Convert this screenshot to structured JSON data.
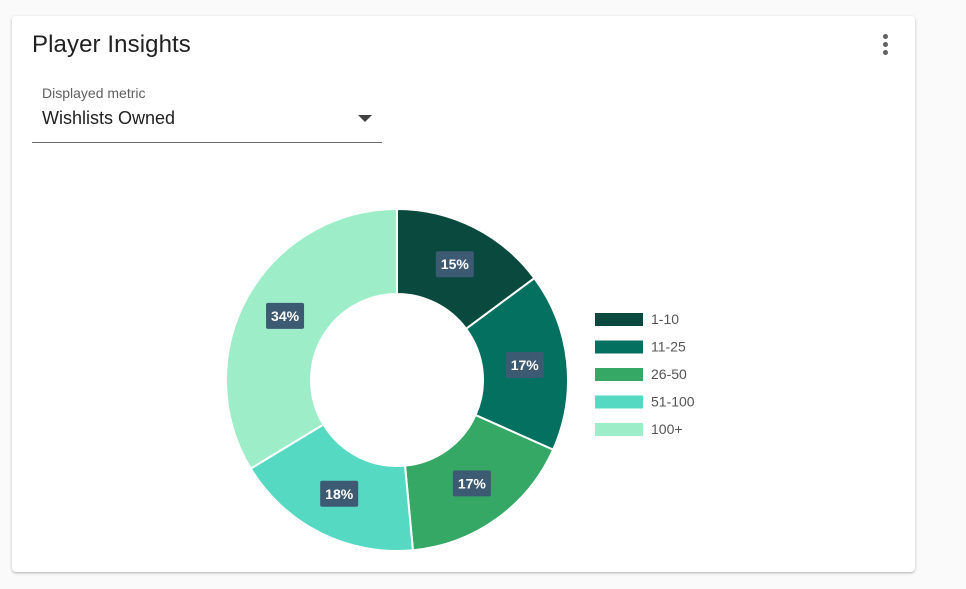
{
  "card": {
    "title": "Player Insights"
  },
  "metric_select": {
    "label": "Displayed metric",
    "value": "Wishlists Owned"
  },
  "icons": {
    "menu": "more-vert-icon",
    "dropdown": "arrow-drop-down-icon"
  },
  "chart_data": {
    "type": "pie",
    "donut": true,
    "categories": [
      "1-10",
      "11-25",
      "26-50",
      "51-100",
      "100+"
    ],
    "values": [
      15,
      17,
      17,
      18,
      34
    ],
    "labels": [
      "15%",
      "17%",
      "17%",
      "18%",
      "34%"
    ],
    "colors": [
      "#0a4a3e",
      "#047060",
      "#36a865",
      "#55d9c2",
      "#9deec8"
    ],
    "legend_position": "right"
  }
}
